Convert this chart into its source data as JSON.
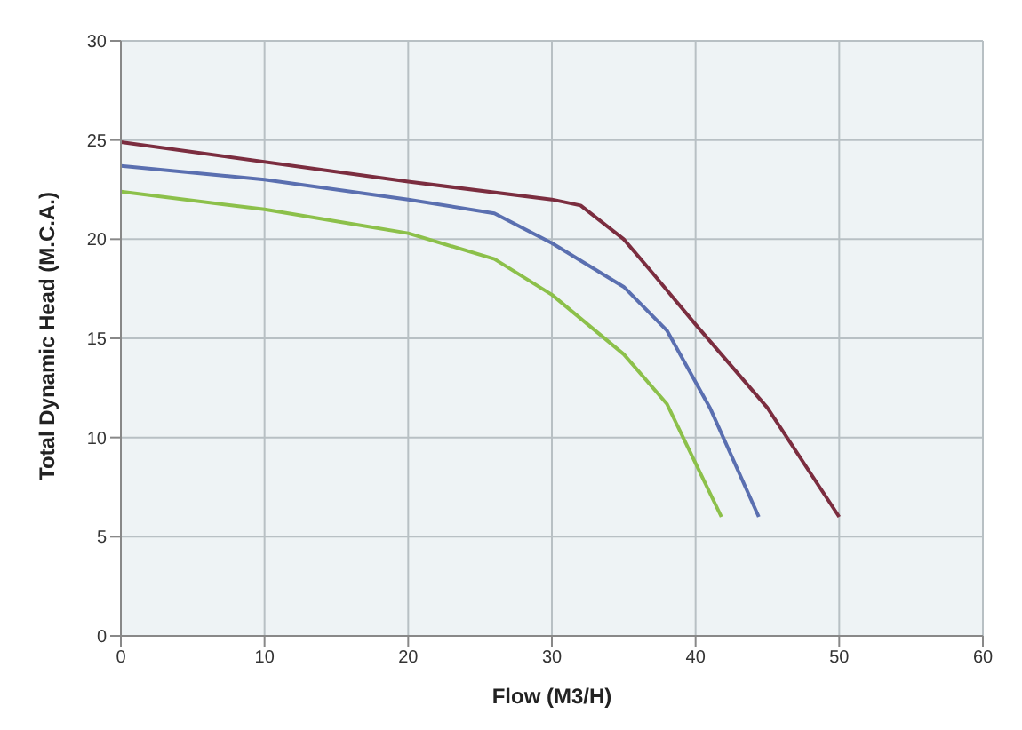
{
  "chart_data": {
    "type": "line",
    "xlabel": "Flow (M3/H)",
    "ylabel": "Total Dynamic Head (M.C.A.)",
    "xlim": [
      0,
      60
    ],
    "xticks": [
      0,
      10,
      20,
      30,
      40,
      50,
      60
    ],
    "ylim": [
      0,
      30
    ],
    "yticks": [
      0,
      5,
      10,
      15,
      20,
      25,
      30
    ],
    "grid": true,
    "marker": "none",
    "line_style": "solid",
    "series": [
      {
        "color": "#5a6fb0",
        "x": [
          0,
          10,
          20,
          26,
          30,
          35,
          38,
          41,
          44.4
        ],
        "values": [
          23.7,
          23,
          22,
          21.3,
          19.8,
          17.6,
          15.4,
          11.5,
          6
        ]
      },
      {
        "color": "#7b2d3f",
        "x": [
          0,
          20,
          30,
          32,
          35,
          37,
          40,
          45,
          50
        ],
        "values": [
          24.9,
          22.9,
          22,
          21.7,
          20,
          18.3,
          15.7,
          11.5,
          6
        ]
      },
      {
        "color": "#8cc04a",
        "x": [
          0,
          10,
          20,
          26,
          30,
          35,
          38,
          41.8
        ],
        "values": [
          22.4,
          21.5,
          20.3,
          19,
          17.2,
          14.2,
          11.7,
          6
        ]
      }
    ]
  }
}
